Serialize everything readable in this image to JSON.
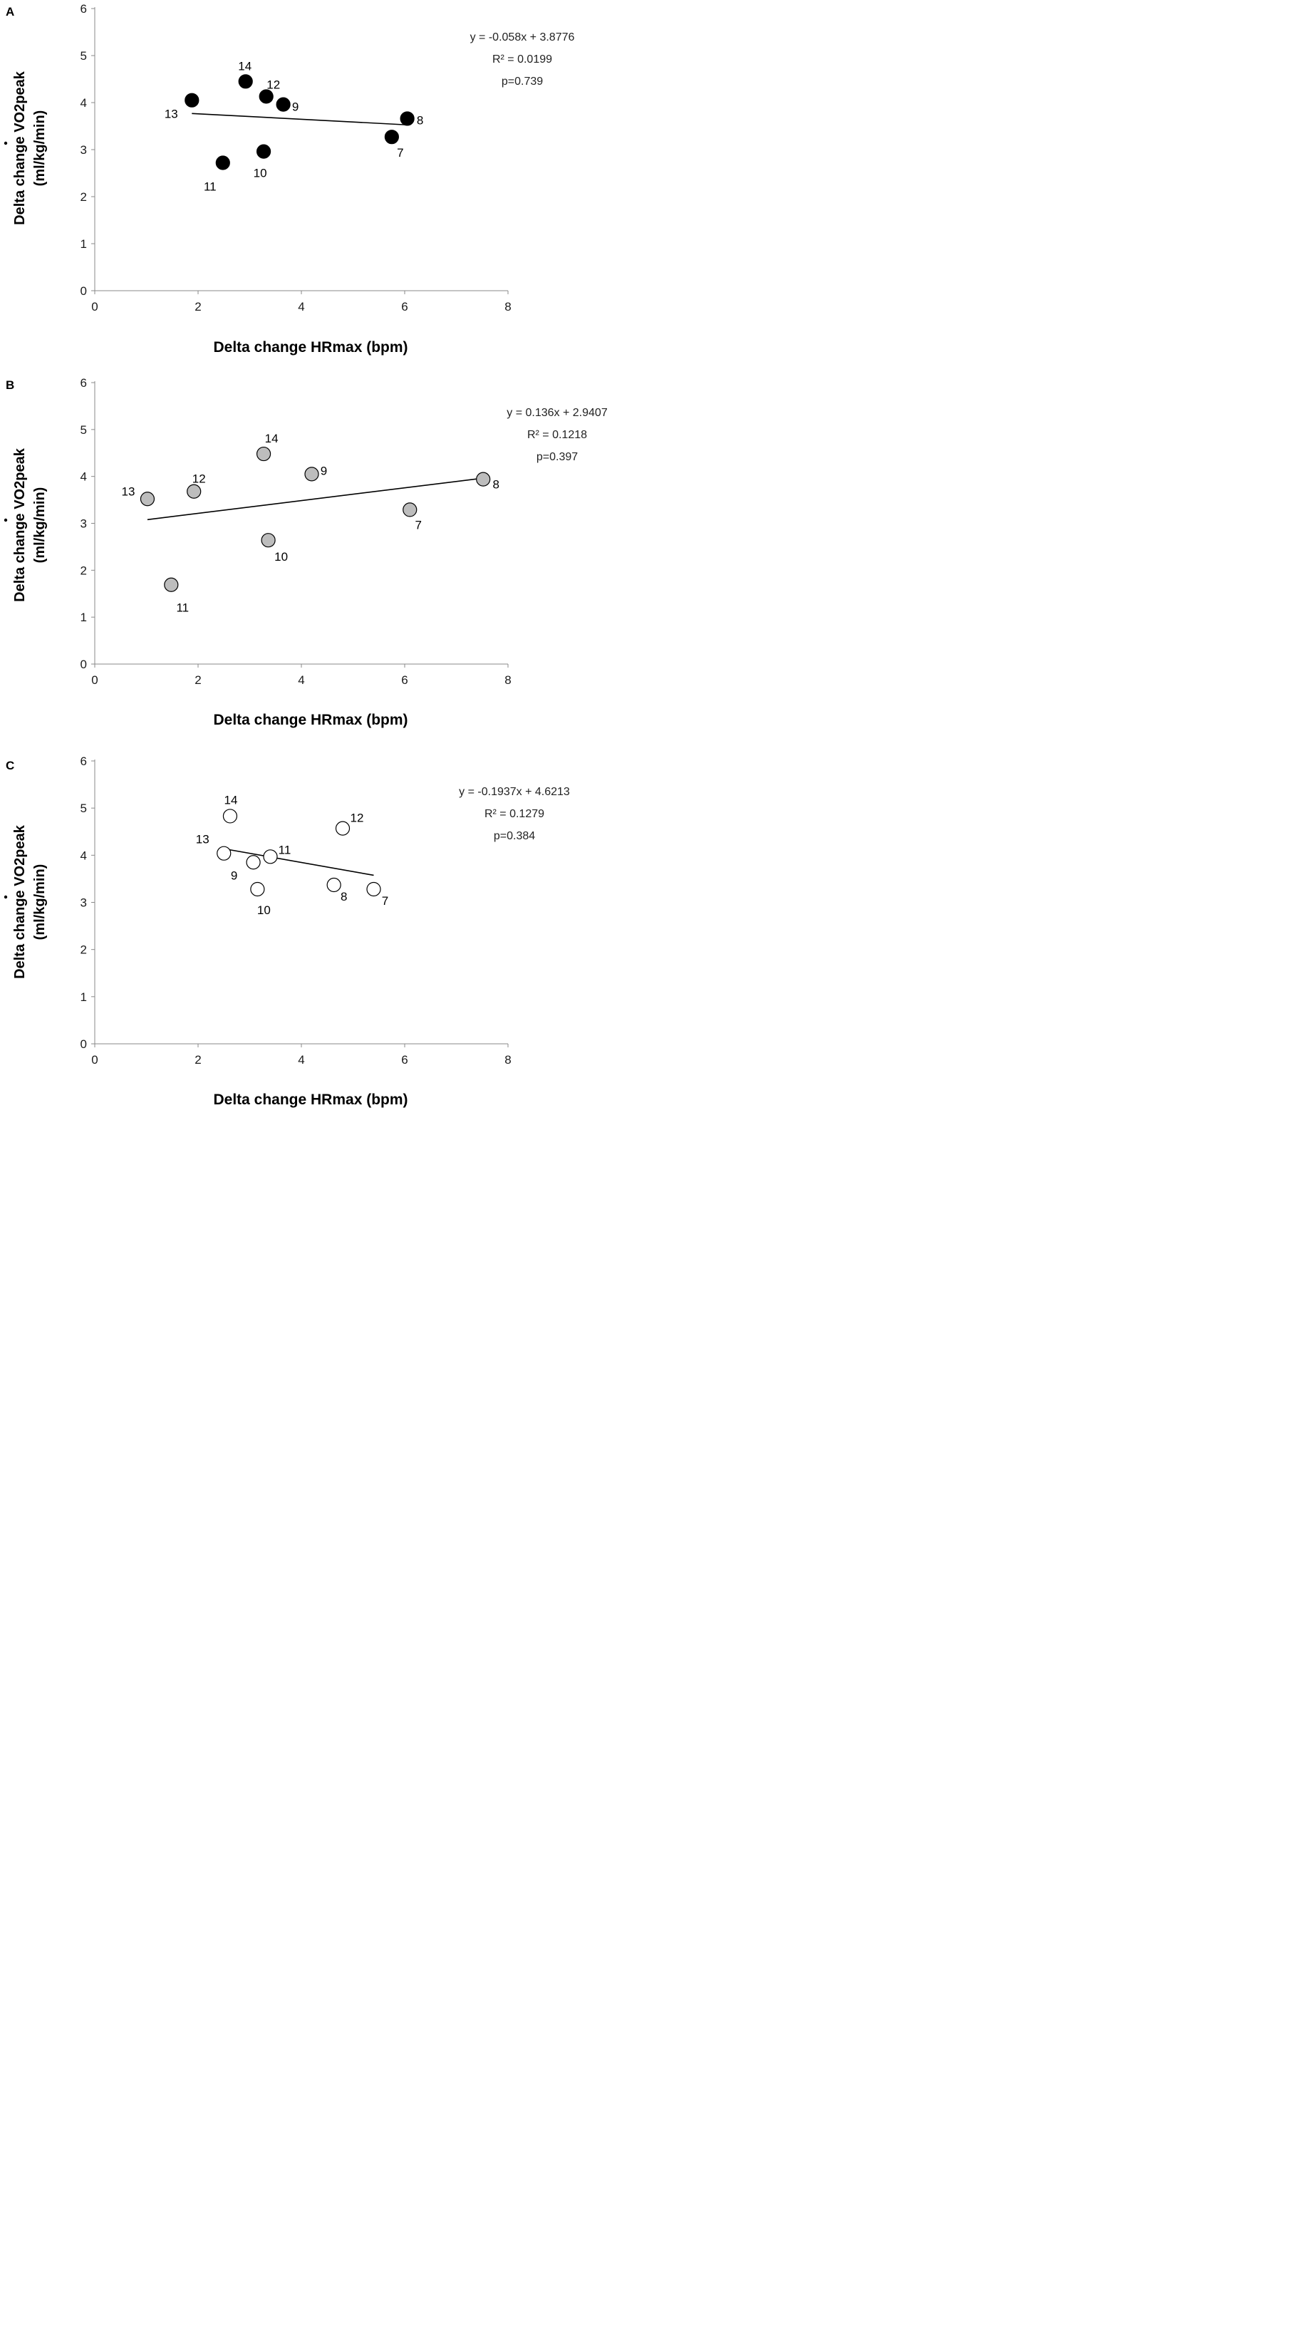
{
  "chart_data": [
    {
      "type": "scatter",
      "panel": "A",
      "marker_fill": "#000000",
      "title": "",
      "xlabel": "Delta change HRmax (bpm)",
      "ylabel": "Delta change VO2peak",
      "ylabel2": "(ml/kg/min)",
      "xlim": [
        0,
        8
      ],
      "ylim": [
        0,
        6
      ],
      "xticks": [
        "0",
        "2",
        "4",
        "6",
        "8"
      ],
      "yticks": [
        "0",
        "1",
        "2",
        "3",
        "4",
        "5",
        "6"
      ],
      "points": [
        {
          "label": "7",
          "x": 5.75,
          "y": 3.27
        },
        {
          "label": "8",
          "x": 6.05,
          "y": 3.66
        },
        {
          "label": "9",
          "x": 3.65,
          "y": 3.96
        },
        {
          "label": "10",
          "x": 3.27,
          "y": 2.96
        },
        {
          "label": "11",
          "x": 2.48,
          "y": 2.72
        },
        {
          "label": "12",
          "x": 3.32,
          "y": 4.13
        },
        {
          "label": "13",
          "x": 1.88,
          "y": 4.05
        },
        {
          "label": "14",
          "x": 2.92,
          "y": 4.45
        }
      ],
      "trendline": {
        "x": [
          1.88,
          6.05
        ]
      },
      "annotation": [
        "y = -0.058x + 3.8776",
        "R² = 0.0199",
        "p=0.739"
      ]
    },
    {
      "type": "scatter",
      "panel": "B",
      "marker_fill": "#bdbdbd",
      "title": "",
      "xlabel": "Delta change HRmax (bpm)",
      "ylabel": "Delta change VO2peak",
      "ylabel2": "(ml/kg/min)",
      "xlim": [
        0,
        8
      ],
      "ylim": [
        0,
        6
      ],
      "xticks": [
        "0",
        "2",
        "4",
        "6",
        "8"
      ],
      "yticks": [
        "0",
        "1",
        "2",
        "3",
        "4",
        "5",
        "6"
      ],
      "points": [
        {
          "label": "7",
          "x": 6.1,
          "y": 3.29
        },
        {
          "label": "8",
          "x": 7.52,
          "y": 3.94
        },
        {
          "label": "9",
          "x": 4.2,
          "y": 4.05
        },
        {
          "label": "10",
          "x": 3.36,
          "y": 2.64
        },
        {
          "label": "11",
          "x": 1.48,
          "y": 1.69
        },
        {
          "label": "12",
          "x": 1.92,
          "y": 3.68
        },
        {
          "label": "13",
          "x": 1.02,
          "y": 3.52
        },
        {
          "label": "14",
          "x": 3.27,
          "y": 4.48
        }
      ],
      "trendline": {
        "x": [
          1.02,
          7.52
        ]
      },
      "annotation": [
        "y = 0.136x + 2.9407",
        "R² = 0.1218",
        "p=0.397"
      ]
    },
    {
      "type": "scatter",
      "panel": "C",
      "marker_fill": "#ffffff",
      "title": "",
      "xlabel": "Delta change HRmax (bpm)",
      "ylabel": "Delta change VO2peak",
      "ylabel2": "(ml/kg/min)",
      "xlim": [
        0,
        8
      ],
      "ylim": [
        0,
        6
      ],
      "xticks": [
        "0",
        "2",
        "4",
        "6",
        "8"
      ],
      "yticks": [
        "0",
        "1",
        "2",
        "3",
        "4",
        "5",
        "6"
      ],
      "points": [
        {
          "label": "7",
          "x": 5.4,
          "y": 3.28
        },
        {
          "label": "8",
          "x": 4.63,
          "y": 3.37
        },
        {
          "label": "9",
          "x": 3.07,
          "y": 3.85
        },
        {
          "label": "10",
          "x": 3.15,
          "y": 3.28
        },
        {
          "label": "11",
          "x": 3.4,
          "y": 3.97
        },
        {
          "label": "12",
          "x": 4.8,
          "y": 4.57
        },
        {
          "label": "13",
          "x": 2.5,
          "y": 4.04
        },
        {
          "label": "14",
          "x": 2.62,
          "y": 4.83
        }
      ],
      "trendline": {
        "x": [
          2.5,
          5.4
        ]
      },
      "annotation": [
        "y = -0.1937x + 4.6213",
        "R² = 0.1279",
        "p=0.384"
      ]
    }
  ]
}
